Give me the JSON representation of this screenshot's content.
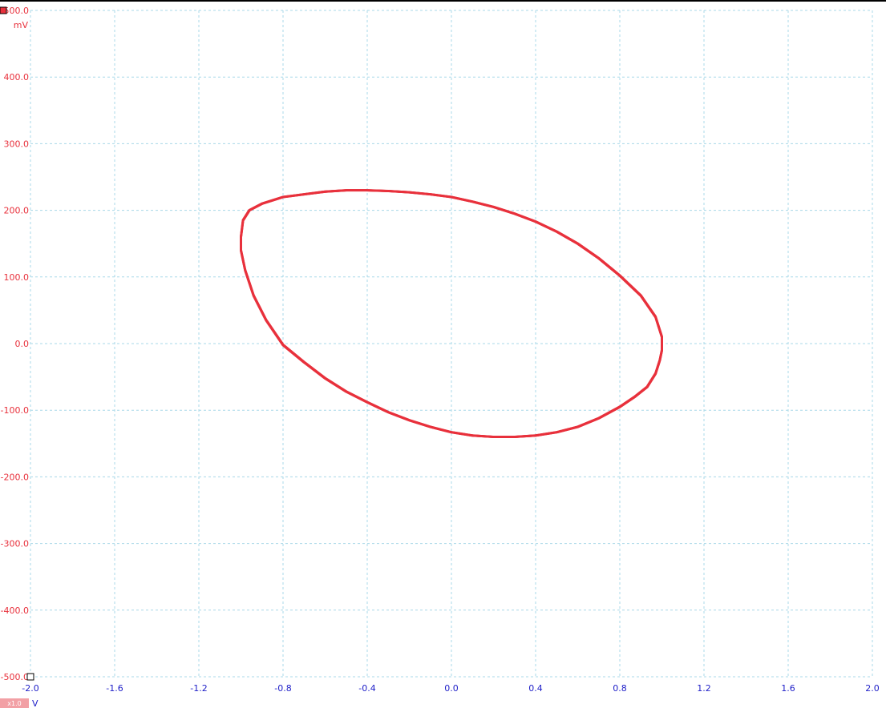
{
  "colors": {
    "trace": "#e8313c",
    "y_axis_text": "#e8313c",
    "x_axis_text": "#2020c8",
    "grid": "#a8d8e8",
    "frame": "#000000",
    "zoom_badge": "#f2a0a5"
  },
  "icons": {
    "channel_marker": "filled-red-square-icon",
    "origin_marker": "hollow-square-icon"
  },
  "chart_data": {
    "type": "scatter",
    "title": "",
    "xlabel": "V",
    "ylabel": "mV",
    "xlim": [
      -2.0,
      2.0
    ],
    "ylim": [
      -500.0,
      500.0
    ],
    "x_ticks": [
      "-2.0",
      "-1.6",
      "-1.2",
      "-0.8",
      "-0.4",
      "0.0",
      "0.4",
      "0.8",
      "1.2",
      "1.6",
      "2.0"
    ],
    "y_ticks": [
      "500.0",
      "400.0",
      "300.0",
      "200.0",
      "100.0",
      "0.0",
      "-100.0",
      "-200.0",
      "-300.0",
      "-400.0",
      "-500.0"
    ],
    "x_tick_values": [
      -2.0,
      -1.6,
      -1.2,
      -0.8,
      -0.4,
      0.0,
      0.4,
      0.8,
      1.2,
      1.6,
      2.0
    ],
    "y_tick_values": [
      500,
      400,
      300,
      200,
      100,
      0,
      -100,
      -200,
      -300,
      -400,
      -500
    ],
    "grid": true,
    "zoom_label": "x1.0",
    "series": [
      {
        "x": [
          -1.0,
          -0.99,
          -0.96,
          -0.9,
          -0.8,
          -0.7,
          -0.6,
          -0.5,
          -0.4,
          -0.3,
          -0.2,
          -0.1,
          0.0,
          0.1,
          0.2,
          0.3,
          0.4,
          0.5,
          0.6,
          0.7,
          0.8,
          0.9,
          0.97,
          1.0,
          1.0,
          0.99,
          0.97,
          0.93,
          0.87,
          0.8,
          0.7,
          0.6,
          0.5,
          0.4,
          0.3,
          0.2,
          0.1,
          0.0,
          -0.1,
          -0.2,
          -0.3,
          -0.4,
          -0.5,
          -0.6,
          -0.7,
          -0.8,
          -0.88,
          -0.94,
          -0.98,
          -1.0
        ],
        "y": [
          160,
          185,
          200,
          210,
          220,
          224,
          228,
          230,
          230,
          229,
          227,
          224,
          220,
          213,
          205,
          195,
          183,
          168,
          150,
          128,
          102,
          72,
          40,
          10,
          -10,
          -25,
          -45,
          -65,
          -80,
          -95,
          -112,
          -125,
          -133,
          -138,
          -140,
          -140,
          -138,
          -133,
          -125,
          -115,
          -103,
          -88,
          -72,
          -52,
          -28,
          -2,
          35,
          72,
          110,
          140
        ]
      }
    ]
  }
}
